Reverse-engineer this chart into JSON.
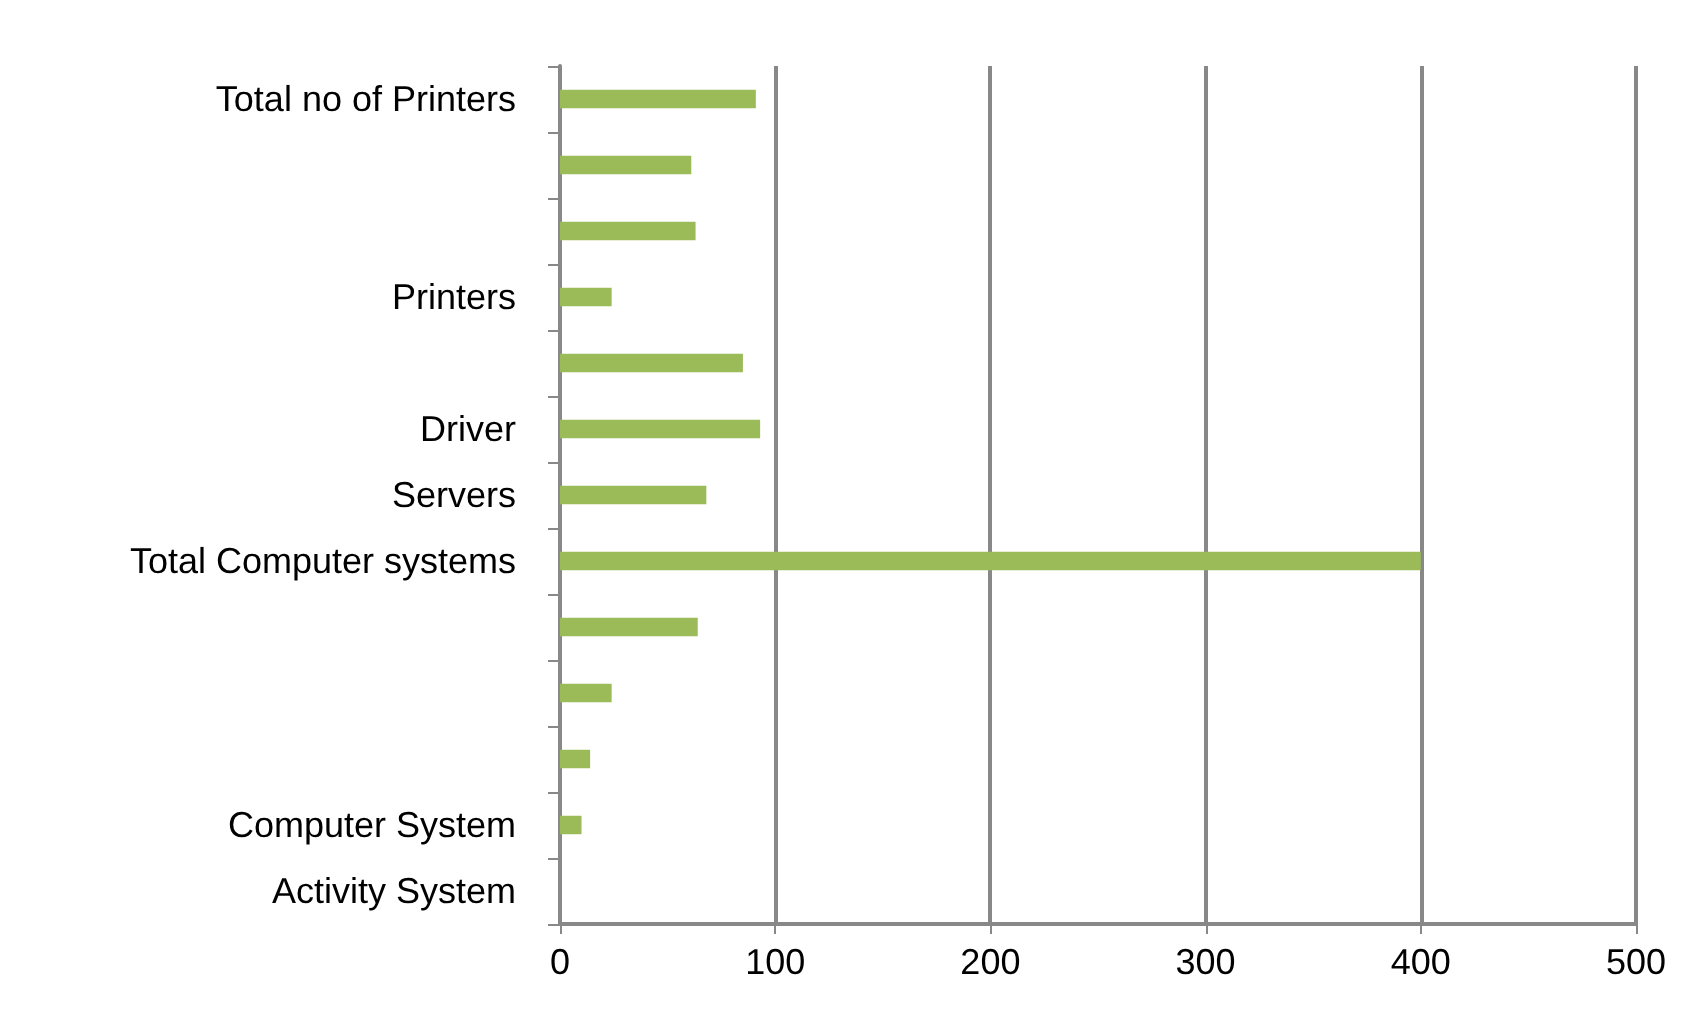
{
  "chart_data": {
    "type": "bar",
    "orientation": "horizontal",
    "categories": [
      "Total no of Printers",
      null,
      null,
      "Printers",
      null,
      "Driver",
      "Servers",
      "Total Computer systems",
      null,
      null,
      null,
      "Computer System",
      "Activity System"
    ],
    "values": [
      91,
      61,
      63,
      24,
      85,
      93,
      68,
      400,
      64,
      24,
      14,
      10,
      null
    ],
    "color": "#9bbb59",
    "xlim": [
      0,
      500
    ],
    "xticks": [
      0,
      100,
      200,
      300,
      400,
      500
    ],
    "grid": "x"
  }
}
